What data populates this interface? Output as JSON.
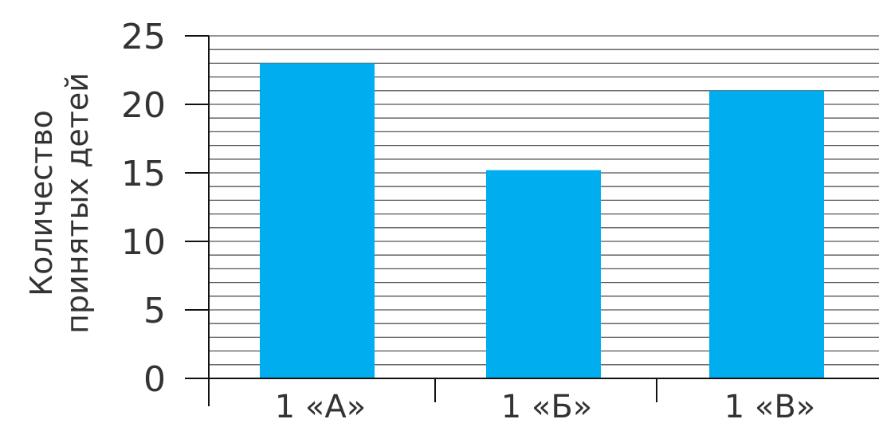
{
  "chart_data": {
    "type": "bar",
    "categories": [
      "1 «А»",
      "1 «Б»",
      "1 «В»"
    ],
    "values": [
      23,
      15.2,
      21
    ],
    "ylabel_lines": [
      "Количество",
      "принятых  детей"
    ],
    "yticks": [
      "0",
      "5",
      "10",
      "15",
      "20",
      "25"
    ],
    "ylim": [
      0,
      25
    ],
    "minor_grid_step": 1,
    "grid": true,
    "bar_color": "#00aeef",
    "grid_color": "#555555"
  }
}
